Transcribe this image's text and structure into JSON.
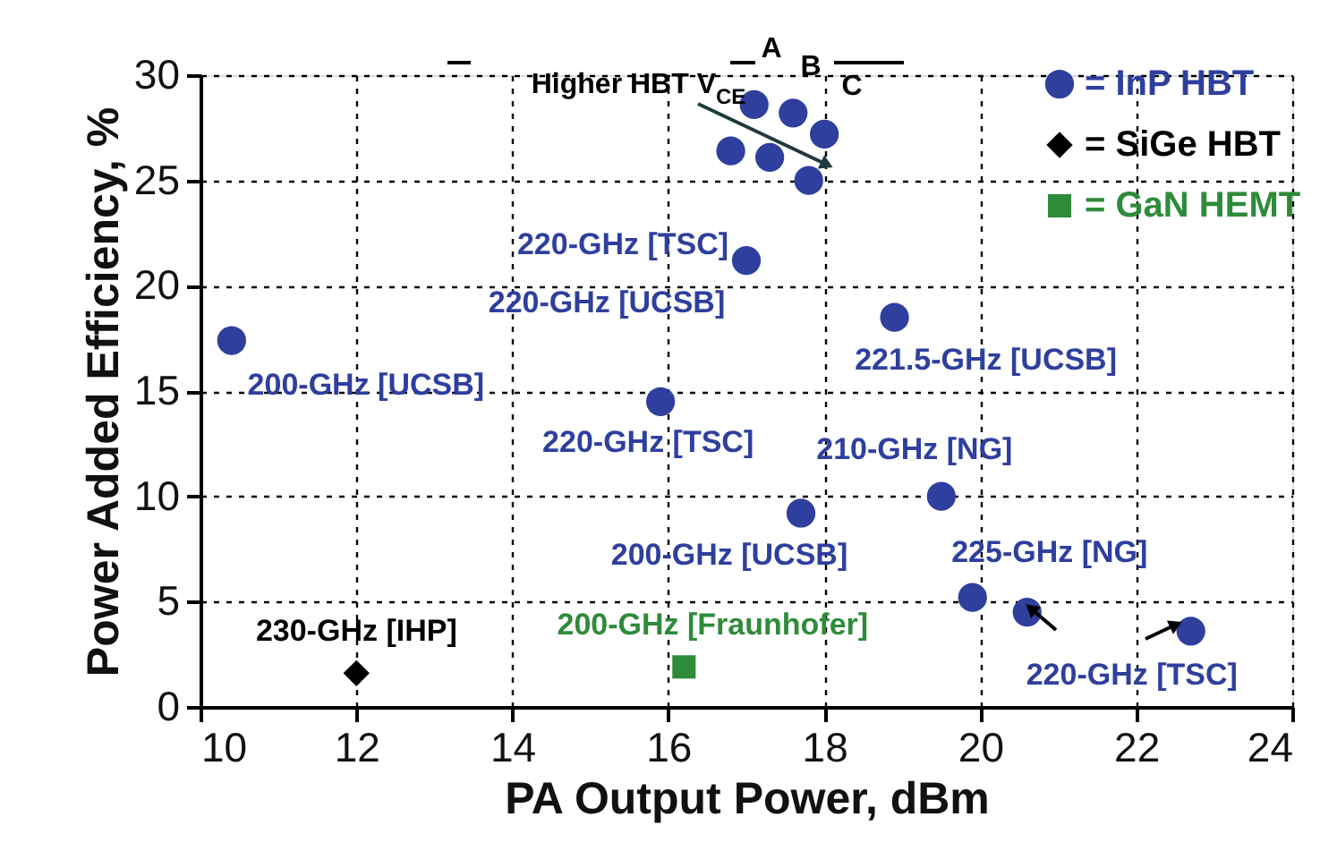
{
  "chart_data": {
    "type": "scatter",
    "xlabel": "PA Output Power, dBm",
    "ylabel": "Power Added Efficiency, %",
    "xlim": [
      10,
      24
    ],
    "xticks": [
      10,
      12,
      14,
      16,
      18,
      20,
      22,
      24
    ],
    "ylim": [
      0,
      30
    ],
    "yticks": [
      0,
      5,
      10,
      15,
      20,
      25,
      30
    ],
    "grid": true,
    "legend": "top right",
    "series": [
      {
        "name": "= InP HBT",
        "color": "#2e3f9e",
        "marker": "circle",
        "x": [
          10.4,
          15.9,
          17.0,
          18.9,
          17.7,
          19.5,
          19.9,
          20.6,
          22.7,
          17.1,
          17.6,
          18.0,
          16.8,
          17.3,
          17.8
        ],
        "values": [
          17.4,
          14.5,
          21.2,
          18.5,
          9.2,
          10.0,
          5.2,
          4.5,
          3.6,
          28.6,
          28.2,
          27.2,
          26.4,
          26.1,
          25.0
        ]
      },
      {
        "name": "= SiGe HBT",
        "color": "#000000",
        "marker": "diamond",
        "x": [
          12.0
        ],
        "values": [
          1.6
        ]
      },
      {
        "name": "= GaN HEMT",
        "color": "#2e8b3a",
        "marker": "square",
        "x": [
          16.2
        ],
        "values": [
          1.9
        ]
      }
    ],
    "annotations": [
      {
        "text": "200-GHz [UCSB]",
        "x": 10.4,
        "y": 17.4
      },
      {
        "text": "220-GHz [TSC]",
        "x": 15.9,
        "y": 14.5
      },
      {
        "text": "220-GHz [UCSB]",
        "x": 17.0,
        "y": 21.2
      },
      {
        "text": "221.5-GHz [UCSB]",
        "x": 18.9,
        "y": 18.5
      },
      {
        "text": "210-GHz [NG]",
        "x": 19.5,
        "y": 10.0
      },
      {
        "text": "200-GHz [UCSB]",
        "x": 17.7,
        "y": 9.2
      },
      {
        "text": "225-GHz [NG]",
        "x": 19.9,
        "y": 5.2
      },
      {
        "text": "220-GHz [TSC]",
        "x": 22.7,
        "y": 3.6
      },
      "220-GHz [TSC]",
      {
        "text": "230-GHz [IHP]",
        "x": 12.0,
        "y": 1.6
      },
      {
        "text": "200-GHz [Fraunhofer]",
        "x": 16.2,
        "y": 1.9
      },
      "Higher HBT V$_{CE}$",
      "A",
      "B",
      "C"
    ]
  }
}
